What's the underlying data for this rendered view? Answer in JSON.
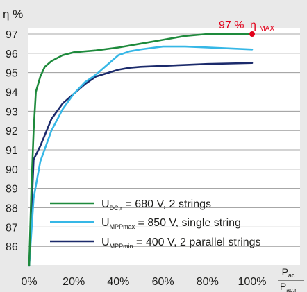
{
  "chart_data": {
    "type": "line",
    "y_axis_label": "η %",
    "y_ticks": [
      86,
      87,
      88,
      89,
      90,
      91,
      92,
      93,
      94,
      95,
      96,
      97
    ],
    "x_ticks": [
      "0%",
      "20%",
      "40%",
      "60%",
      "80%",
      "100%"
    ],
    "x_tick_values": [
      0,
      20,
      40,
      60,
      80,
      100
    ],
    "x_axis_label": {
      "numerator_main": "P",
      "numerator_sub": "ac",
      "denominator_main": "P",
      "denominator_sub": "ac,r"
    },
    "xlim": [
      0,
      100
    ],
    "ylim": [
      85,
      97
    ],
    "grid": "horizontal",
    "legend_placement": "bottom-right",
    "max_annotation": {
      "text": "97 %",
      "symbol": "η",
      "sub": "MAX",
      "x": 100,
      "y": 97,
      "color": "#e2001a"
    },
    "series": [
      {
        "legend_main": "U",
        "legend_sub": "DC,r",
        "legend_rest": " = 680 V, 2 strings",
        "color": "#1e8a3c",
        "x": [
          0,
          1,
          2,
          3,
          5,
          7,
          10,
          15,
          20,
          30,
          40,
          50,
          60,
          70,
          80,
          90,
          100
        ],
        "y": [
          85,
          89,
          92,
          94,
          94.8,
          95.3,
          95.6,
          95.9,
          96.05,
          96.15,
          96.3,
          96.5,
          96.7,
          96.9,
          97,
          97,
          97
        ]
      },
      {
        "legend_main": "U",
        "legend_sub": "MPPmax",
        "legend_rest": " = 850 V, single string",
        "color": "#36b7e6",
        "x": [
          0,
          2,
          5,
          10,
          15,
          20,
          25,
          30,
          35,
          40,
          45,
          50,
          60,
          70,
          80,
          100
        ],
        "y": [
          85,
          88.5,
          90.4,
          92,
          93.1,
          93.9,
          94.5,
          94.9,
          95.4,
          95.9,
          96.1,
          96.2,
          96.35,
          96.35,
          96.3,
          96.2
        ]
      },
      {
        "legend_main": "U",
        "legend_sub": "MPPmin",
        "legend_rest": " = 400 V, 2 parallel strings",
        "color": "#1b2a6b",
        "x": [
          0,
          2,
          5,
          10,
          15,
          20,
          25,
          30,
          40,
          45,
          50,
          60,
          70,
          80,
          100
        ],
        "y": [
          85,
          90.5,
          91.2,
          92.6,
          93.4,
          93.9,
          94.4,
          94.8,
          95.15,
          95.25,
          95.3,
          95.35,
          95.4,
          95.45,
          95.5
        ]
      }
    ]
  }
}
